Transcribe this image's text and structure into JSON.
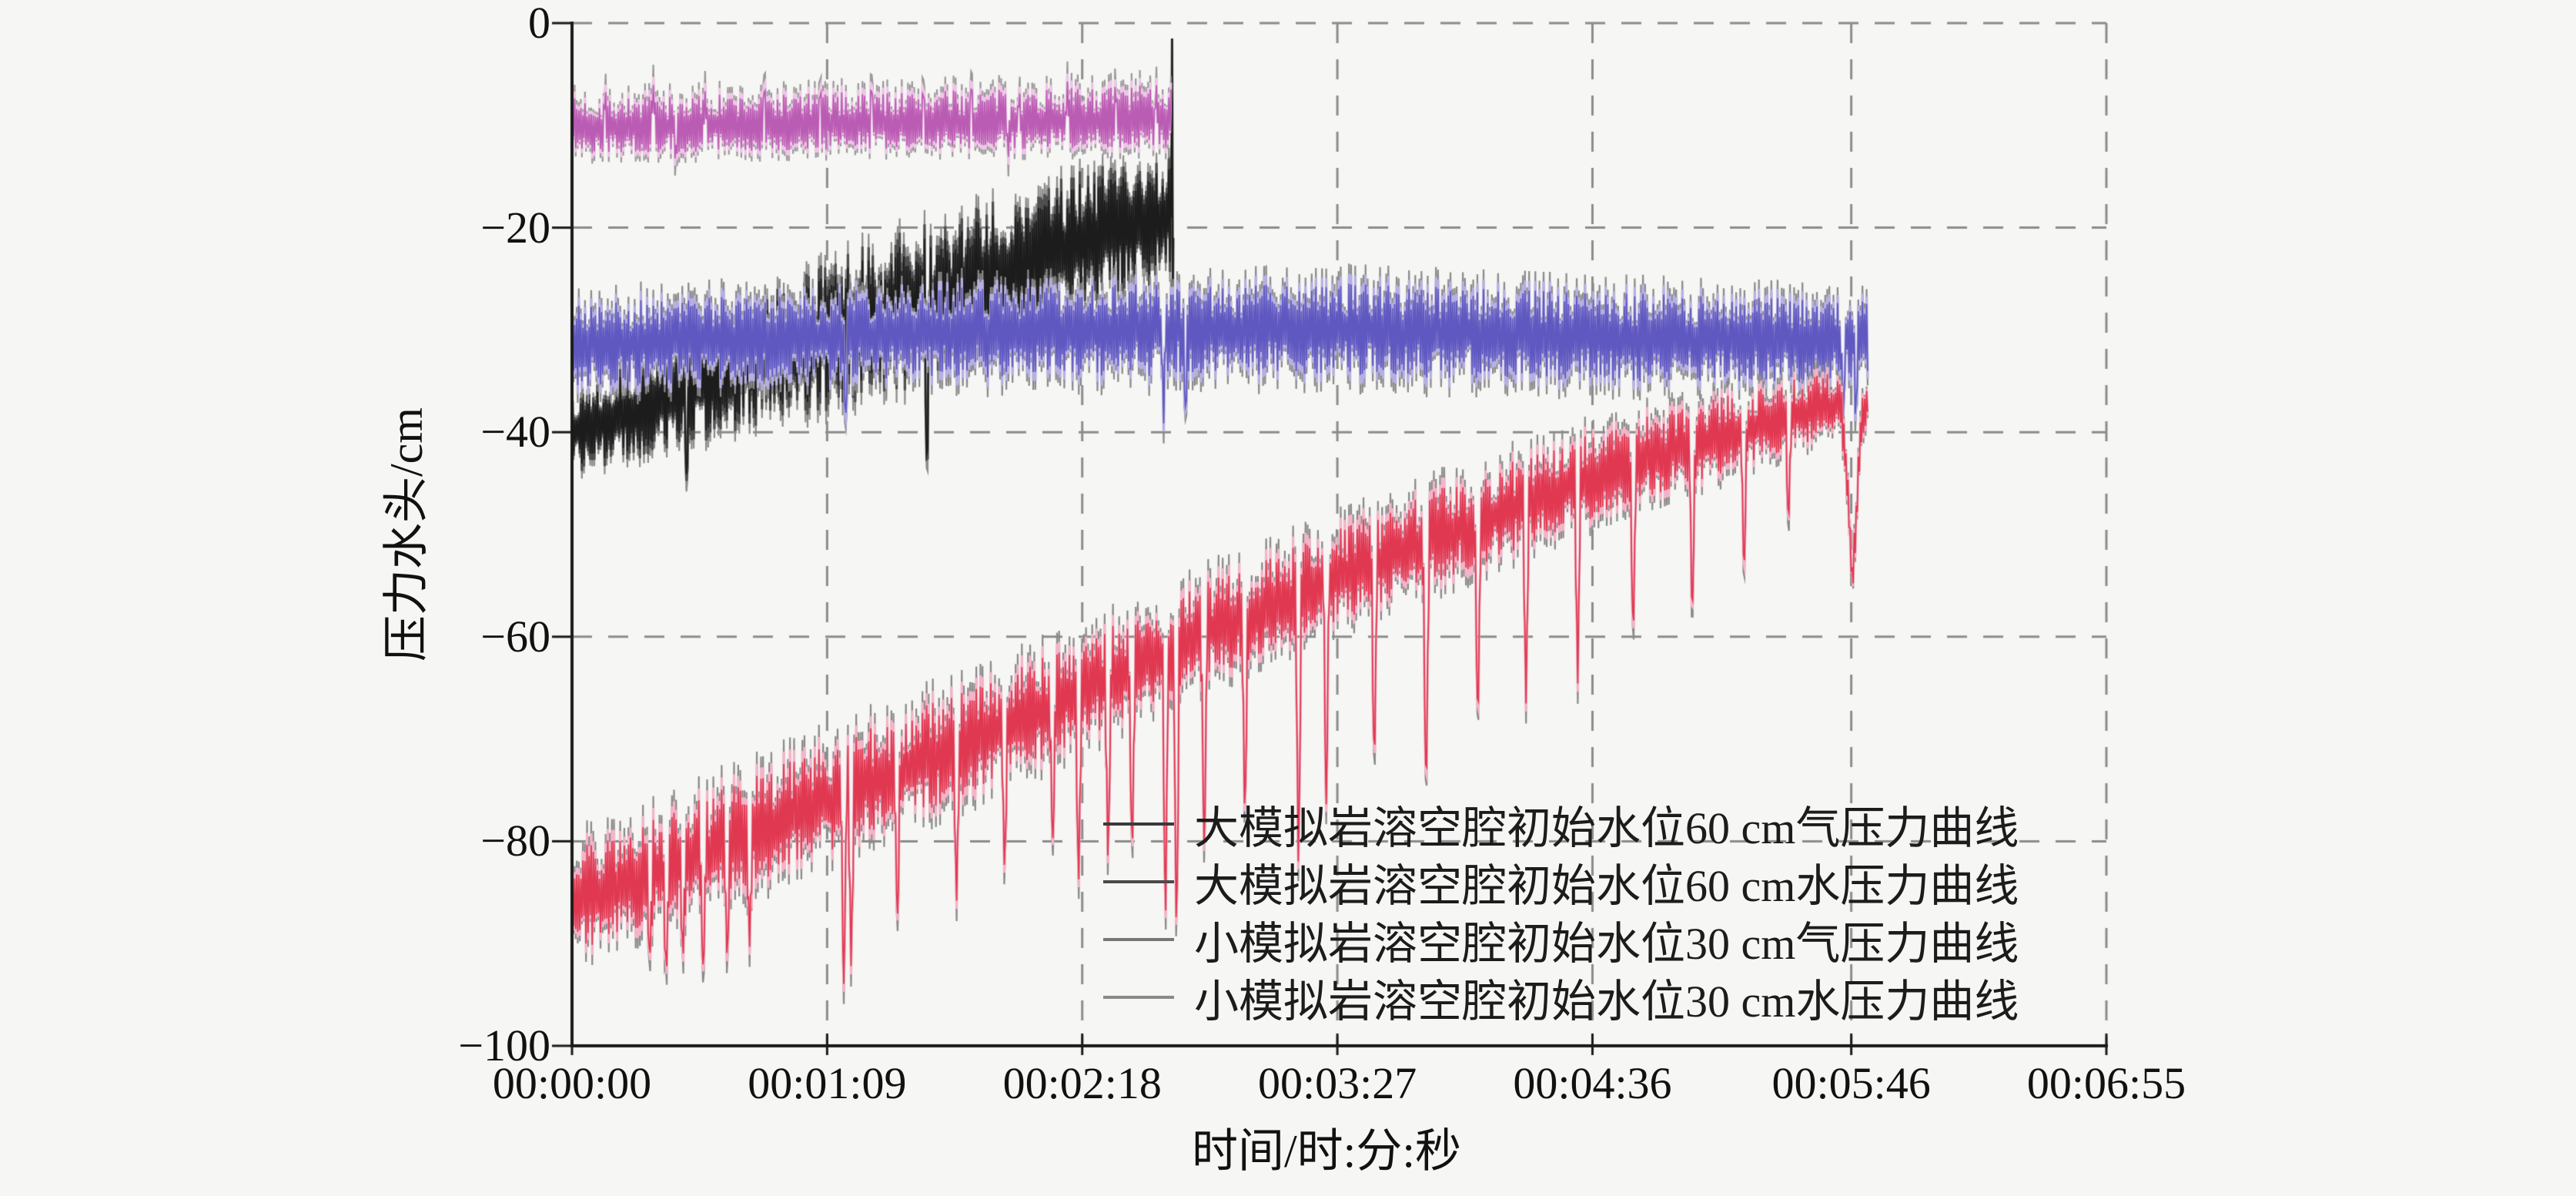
{
  "chart_data": {
    "type": "line",
    "title": "",
    "xlabel": "时间/时:分:秒",
    "ylabel": "压力水头/cm",
    "xlim_seconds": [
      0,
      415
    ],
    "ylim": [
      -100,
      0
    ],
    "grid": {
      "show": true,
      "style": "dashed",
      "color": "#8c8c8c"
    },
    "axis_color": "#1a1a1a",
    "background_color": "#f6f6f4",
    "x_ticks": [
      {
        "seconds": 0,
        "label": "00:00:00"
      },
      {
        "seconds": 69,
        "label": "00:01:09"
      },
      {
        "seconds": 138,
        "label": "00:02:18"
      },
      {
        "seconds": 207,
        "label": "00:03:27"
      },
      {
        "seconds": 276,
        "label": "00:04:36"
      },
      {
        "seconds": 346,
        "label": "00:05:46"
      },
      {
        "seconds": 415,
        "label": "00:06:55"
      }
    ],
    "y_ticks": [
      {
        "value": 0,
        "label": "0"
      },
      {
        "value": -20,
        "label": "−20"
      },
      {
        "value": -40,
        "label": "−40"
      },
      {
        "value": -60,
        "label": "−60"
      },
      {
        "value": -80,
        "label": "−80"
      },
      {
        "value": -100,
        "label": "−100"
      }
    ],
    "legend": {
      "position": "inside-lower-right",
      "entries": [
        {
          "label": "大模拟岩溶空腔初始水位60 cm气压力曲线",
          "swatch_color": "#3a3a3a"
        },
        {
          "label": "大模拟岩溶空腔初始水位60 cm水压力曲线",
          "swatch_color": "#4a4a4a"
        },
        {
          "label": "小模拟岩溶空腔初始水位30 cm气压力曲线",
          "swatch_color": "#777777"
        },
        {
          "label": "小模拟岩溶空腔初始水位30 cm水压力曲线",
          "swatch_color": "#8a8a8a"
        }
      ]
    },
    "series": [
      {
        "name": "big-cavity-60cm-water-pressure",
        "legend_index": 1,
        "colors": {
          "main": "#1c1c1c",
          "light": "#4f4f4f",
          "shadow": "#8c8c8c"
        },
        "seed": 13,
        "upbias": 1.0,
        "t_start": 0.15,
        "t_end": 162.0,
        "spike_halfwidth": 0.6,
        "envelope": [
          [
            0,
            -40,
            4.5
          ],
          [
            20,
            -37.5,
            5.0
          ],
          [
            45,
            -34,
            6.0
          ],
          [
            70,
            -30.5,
            7.5
          ],
          [
            95,
            -27.5,
            8.0
          ],
          [
            120,
            -24,
            7.5
          ],
          [
            140,
            -21,
            7.0
          ],
          [
            155,
            -19.5,
            6.5
          ],
          [
            162,
            -19,
            6.5
          ]
        ],
        "spikes": [
          [
            31,
            -46
          ],
          [
            96,
            -46.5
          ]
        ],
        "end_points": [
          [
            162.1,
            -19
          ],
          [
            162.3,
            -1.5
          ],
          [
            162.5,
            -27.5
          ],
          [
            162.62,
            -21
          ]
        ]
      },
      {
        "name": "big-cavity-60cm-air-pressure",
        "legend_index": 0,
        "colors": {
          "main": "#bb5cb4",
          "light": "#eec6e6",
          "shadow": "#9a9a9a"
        },
        "seed": 7,
        "upbias": 1.3,
        "t_start": 0.15,
        "t_end": 162.0,
        "spike_halfwidth": 0.5,
        "envelope": [
          [
            0,
            -10.4,
            2.9
          ],
          [
            60,
            -10.0,
            3.0
          ],
          [
            120,
            -9.8,
            3.1
          ],
          [
            162,
            -9.5,
            3.3
          ]
        ],
        "spikes": [
          [
            9,
            -5.6
          ],
          [
            22,
            -5.2
          ],
          [
            36,
            -5.8
          ],
          [
            52,
            -5.4
          ],
          [
            67,
            -5.7
          ],
          [
            81,
            -5.2
          ],
          [
            95,
            -5.6
          ],
          [
            108,
            -5.1
          ],
          [
            121,
            -5.5
          ],
          [
            134,
            -4.9
          ],
          [
            147,
            -5.3
          ],
          [
            158,
            -5.0
          ],
          [
            28,
            -14.5
          ],
          [
            118,
            -14.0
          ]
        ]
      },
      {
        "name": "small-cavity-30cm-air-pressure",
        "legend_index": 2,
        "colors": {
          "main": "#5f58c0",
          "light": "#b6b0e2",
          "shadow": "#8a8a8a"
        },
        "seed": 21,
        "upbias": 1.0,
        "t_start": 0.15,
        "t_end": 350.5,
        "spike_halfwidth": 0.55,
        "envelope": [
          [
            0,
            -31.5,
            5.2
          ],
          [
            40,
            -31,
            5.2
          ],
          [
            90,
            -30.3,
            5.4
          ],
          [
            150,
            -30,
            5.5
          ],
          [
            210,
            -30,
            5.5
          ],
          [
            270,
            -30.6,
            5.3
          ],
          [
            330,
            -31,
            5.1
          ],
          [
            350.5,
            -30.8,
            5.0
          ]
        ],
        "spikes": [
          [
            74,
            -40.5
          ],
          [
            160,
            -40.3
          ],
          [
            166,
            -40.5
          ],
          [
            343.8,
            -41.2
          ],
          [
            347.2,
            -40.6
          ]
        ]
      },
      {
        "name": "small-cavity-30cm-water-pressure",
        "legend_index": 3,
        "colors": {
          "main": "#e03850",
          "light": "#f3b4c8",
          "shadow": "#8a8a8a"
        },
        "seed": 29,
        "upbias": 1.12,
        "t_start": 0.15,
        "t_end": 350.5,
        "spike_halfwidth": 0.8,
        "envelope": [
          [
            0,
            -86.5,
            6.2
          ],
          [
            30,
            -82,
            6.0
          ],
          [
            80,
            -74.5,
            6.0
          ],
          [
            120,
            -68.5,
            5.8
          ],
          [
            160,
            -61.5,
            5.6
          ],
          [
            200,
            -55.5,
            5.4
          ],
          [
            240,
            -49.5,
            5.2
          ],
          [
            280,
            -44,
            4.8
          ],
          [
            310,
            -40.5,
            4.4
          ],
          [
            330,
            -38.5,
            4.0
          ],
          [
            343,
            -37.2,
            3.4
          ],
          [
            344.8,
            -44,
            2.6
          ],
          [
            346.3,
            -55,
            2.0
          ],
          [
            347.8,
            -45,
            2.8
          ],
          [
            349.2,
            -38,
            3.0
          ],
          [
            350.5,
            -36.5,
            3.0
          ]
        ],
        "spikes": [
          [
            21,
            -93
          ],
          [
            25.5,
            -94.5
          ],
          [
            30,
            -92.5
          ],
          [
            35.5,
            -94
          ],
          [
            42,
            -93
          ],
          [
            48,
            -91.5
          ],
          [
            73.5,
            -95
          ],
          [
            75.5,
            -93.5
          ],
          [
            88,
            -89.5
          ],
          [
            104,
            -87
          ],
          [
            117,
            -84.5
          ],
          [
            130,
            -82
          ],
          [
            137,
            -86
          ],
          [
            145,
            -84
          ],
          [
            151.5,
            -83
          ],
          [
            160.5,
            -90.5
          ],
          [
            163.5,
            -92
          ],
          [
            171,
            -82.5
          ],
          [
            182,
            -80
          ],
          [
            196.5,
            -85
          ],
          [
            204,
            -77.5
          ],
          [
            217,
            -74.5
          ],
          [
            231,
            -78
          ],
          [
            245,
            -70.5
          ],
          [
            258,
            -68
          ],
          [
            272,
            -66
          ],
          [
            287,
            -62
          ],
          [
            303,
            -60
          ],
          [
            317,
            -55.5
          ],
          [
            329,
            -50.5
          ]
        ]
      }
    ]
  }
}
